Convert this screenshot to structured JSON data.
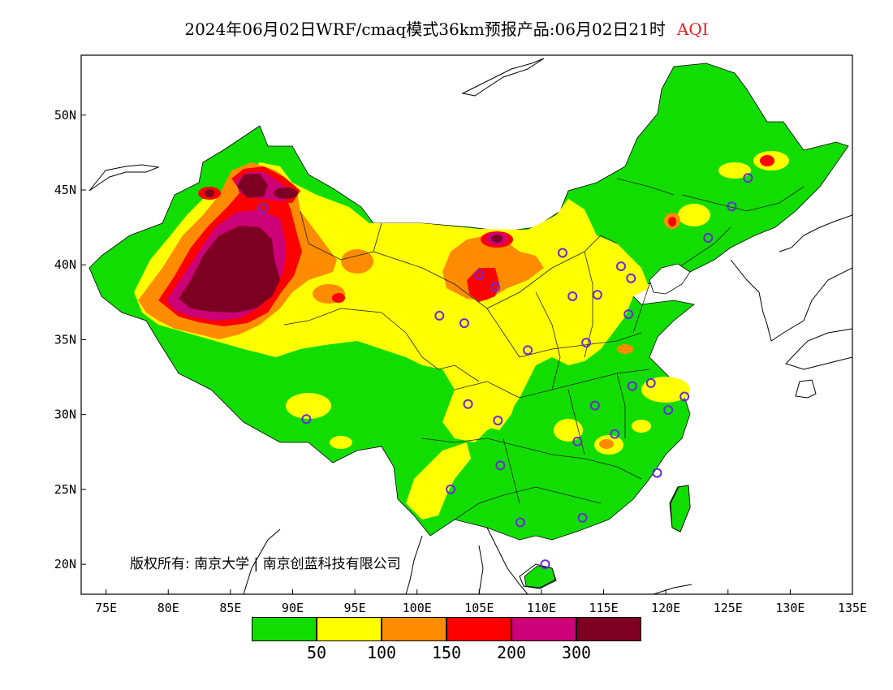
{
  "title": {
    "main": "2024年06月02日WRF/cmaq模式36km预报产品:06月02日21时",
    "variable": "AQI"
  },
  "map": {
    "lon_range": [
      73,
      135
    ],
    "lat_range": [
      18,
      54
    ],
    "lon_ticks": [
      {
        "value": 75,
        "label": "75E"
      },
      {
        "value": 80,
        "label": "80E"
      },
      {
        "value": 85,
        "label": "85E"
      },
      {
        "value": 90,
        "label": "90E"
      },
      {
        "value": 95,
        "label": "95E"
      },
      {
        "value": 100,
        "label": "100E"
      },
      {
        "value": 105,
        "label": "105E"
      },
      {
        "value": 110,
        "label": "110E"
      },
      {
        "value": 115,
        "label": "115E"
      },
      {
        "value": 120,
        "label": "120E"
      },
      {
        "value": 125,
        "label": "125E"
      },
      {
        "value": 130,
        "label": "130E"
      },
      {
        "value": 135,
        "label": "135E"
      }
    ],
    "lat_ticks": [
      {
        "value": 20,
        "label": "20N"
      },
      {
        "value": 25,
        "label": "25N"
      },
      {
        "value": 30,
        "label": "30N"
      },
      {
        "value": 35,
        "label": "35N"
      },
      {
        "value": 40,
        "label": "40N"
      },
      {
        "value": 45,
        "label": "45N"
      },
      {
        "value": 50,
        "label": "50N"
      }
    ],
    "stations": [
      [
        87.6,
        43.8
      ],
      [
        106.3,
        38.5
      ],
      [
        103.8,
        36.1
      ],
      [
        101.8,
        36.6
      ],
      [
        104.1,
        30.7
      ],
      [
        106.5,
        29.6
      ],
      [
        106.7,
        26.6
      ],
      [
        102.7,
        25.0
      ],
      [
        108.3,
        22.8
      ],
      [
        113.3,
        23.1
      ],
      [
        110.3,
        20.0
      ],
      [
        112.9,
        28.2
      ],
      [
        114.3,
        30.6
      ],
      [
        115.9,
        28.7
      ],
      [
        117.3,
        31.9
      ],
      [
        118.8,
        32.1
      ],
      [
        120.2,
        30.3
      ],
      [
        121.5,
        31.2
      ],
      [
        119.3,
        26.1
      ],
      [
        108.9,
        34.3
      ],
      [
        113.6,
        34.8
      ],
      [
        117.0,
        36.7
      ],
      [
        114.5,
        38.0
      ],
      [
        112.5,
        37.9
      ],
      [
        111.7,
        40.8
      ],
      [
        116.4,
        39.9
      ],
      [
        117.2,
        39.1
      ],
      [
        123.4,
        41.8
      ],
      [
        125.3,
        43.9
      ],
      [
        126.6,
        45.8
      ],
      [
        91.1,
        29.7
      ],
      [
        105.0,
        39.3
      ]
    ]
  },
  "legend": {
    "colors": [
      "#12dd00",
      "#ffff00",
      "#ff8c00",
      "#ff0000",
      "#cc0077",
      "#7d0022"
    ],
    "tick_labels": [
      "50",
      "100",
      "150",
      "200",
      "300"
    ]
  },
  "copyright": "版权所有: 南京大学 | 南京创蓝科技有限公司"
}
